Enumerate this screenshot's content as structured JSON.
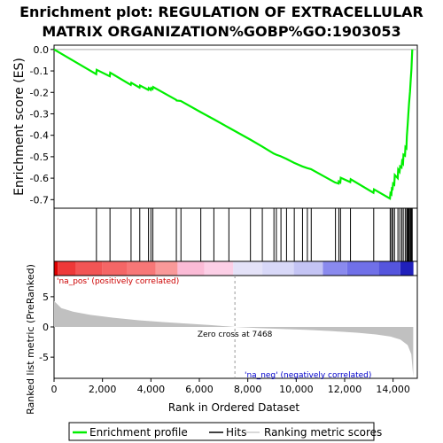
{
  "chart_data": {
    "type": "line",
    "title_line1": "Enrichment plot: REGULATION OF EXTRACELLULAR",
    "title_line2": "MATRIX ORGANIZATION%GOBP%GO:1903053",
    "es_ylabel": "Enrichment score (ES)",
    "es_ylim": [
      -0.74,
      0.02
    ],
    "es_yticks": [
      "0.0",
      "-0.1",
      "-0.2",
      "-0.3",
      "-0.4",
      "-0.5",
      "-0.6",
      "-0.7"
    ],
    "es_ytick_values": [
      0.0,
      -0.1,
      -0.2,
      -0.3,
      -0.4,
      -0.5,
      -0.6,
      -0.7
    ],
    "xlim": [
      0,
      15000
    ],
    "xticks": [
      "0",
      "2,000",
      "4,000",
      "6,000",
      "8,000",
      "10,000",
      "12,000",
      "14,000"
    ],
    "xtick_values": [
      0,
      2000,
      4000,
      6000,
      8000,
      10000,
      12000,
      14000
    ],
    "xlabel": "Rank in Ordered Dataset",
    "metric_ylabel": "Ranked list metric (PreRanked)",
    "metric_ylim": [
      -8.5,
      8.5
    ],
    "metric_yticks": [
      "5",
      "0",
      "-5"
    ],
    "metric_ytick_values": [
      5,
      0,
      -5
    ],
    "zero_cross_label": "Zero cross at 7468",
    "zero_cross": 7468,
    "na_pos_label": "'na_pos' (positively correlated)",
    "na_neg_label": "'na_neg' (negatively correlated)",
    "legend": [
      "Enrichment profile",
      "Hits",
      "Ranking metric scores"
    ],
    "hits": [
      1750,
      2310,
      3180,
      3540,
      3900,
      4000,
      4080,
      5050,
      5240,
      6060,
      6600,
      7220,
      8110,
      8600,
      9080,
      9180,
      9370,
      9600,
      9920,
      10260,
      10460,
      10620,
      11620,
      11760,
      11830,
      12240,
      13200,
      13880,
      13940,
      13990,
      14060,
      14200,
      14280,
      14360,
      14420,
      14500,
      14560,
      14600,
      14630,
      14660,
      14700,
      14730,
      14760,
      14790
    ],
    "es_profile": [
      [
        0,
        0.0
      ],
      [
        1740,
        -0.115
      ],
      [
        1760,
        -0.095
      ],
      [
        2300,
        -0.125
      ],
      [
        2320,
        -0.108
      ],
      [
        3170,
        -0.165
      ],
      [
        3190,
        -0.155
      ],
      [
        3530,
        -0.178
      ],
      [
        3550,
        -0.168
      ],
      [
        3890,
        -0.188
      ],
      [
        3910,
        -0.18
      ],
      [
        3990,
        -0.188
      ],
      [
        4010,
        -0.18
      ],
      [
        4070,
        -0.185
      ],
      [
        4090,
        -0.175
      ],
      [
        5040,
        -0.235
      ],
      [
        5060,
        -0.238
      ],
      [
        5230,
        -0.24
      ],
      [
        6050,
        -0.292
      ],
      [
        6590,
        -0.325
      ],
      [
        7210,
        -0.364
      ],
      [
        8100,
        -0.42
      ],
      [
        8590,
        -0.452
      ],
      [
        9070,
        -0.485
      ],
      [
        9170,
        -0.49
      ],
      [
        9360,
        -0.498
      ],
      [
        9590,
        -0.51
      ],
      [
        9910,
        -0.528
      ],
      [
        10250,
        -0.545
      ],
      [
        10450,
        -0.553
      ],
      [
        10610,
        -0.558
      ],
      [
        11600,
        -0.62
      ],
      [
        11750,
        -0.625
      ],
      [
        11760,
        -0.615
      ],
      [
        11820,
        -0.62
      ],
      [
        11840,
        -0.598
      ],
      [
        12230,
        -0.618
      ],
      [
        12250,
        -0.605
      ],
      [
        13190,
        -0.668
      ],
      [
        13210,
        -0.652
      ],
      [
        13870,
        -0.695
      ],
      [
        13890,
        -0.67
      ],
      [
        13930,
        -0.675
      ],
      [
        13950,
        -0.648
      ],
      [
        13980,
        -0.65
      ],
      [
        14000,
        -0.625
      ],
      [
        14050,
        -0.63
      ],
      [
        14070,
        -0.585
      ],
      [
        14190,
        -0.6
      ],
      [
        14210,
        -0.56
      ],
      [
        14270,
        -0.57
      ],
      [
        14290,
        -0.545
      ],
      [
        14350,
        -0.55
      ],
      [
        14370,
        -0.522
      ],
      [
        14410,
        -0.53
      ],
      [
        14430,
        -0.49
      ],
      [
        14490,
        -0.495
      ],
      [
        14510,
        -0.455
      ],
      [
        14550,
        -0.46
      ],
      [
        14570,
        -0.405
      ],
      [
        14600,
        -0.352
      ],
      [
        14630,
        -0.3
      ],
      [
        14660,
        -0.25
      ],
      [
        14700,
        -0.195
      ],
      [
        14730,
        -0.14
      ],
      [
        14760,
        -0.09
      ],
      [
        14790,
        0.0
      ]
    ],
    "metric_profile": [
      [
        0,
        4.3
      ],
      [
        300,
        3.1
      ],
      [
        800,
        2.5
      ],
      [
        1500,
        2.0
      ],
      [
        2500,
        1.5
      ],
      [
        3500,
        1.1
      ],
      [
        4500,
        0.8
      ],
      [
        5500,
        0.55
      ],
      [
        6500,
        0.3
      ],
      [
        7468,
        0.0
      ],
      [
        8500,
        -0.2
      ],
      [
        9500,
        -0.35
      ],
      [
        10500,
        -0.5
      ],
      [
        11500,
        -0.7
      ],
      [
        12500,
        -0.95
      ],
      [
        13300,
        -1.25
      ],
      [
        13900,
        -1.6
      ],
      [
        14300,
        -2.1
      ],
      [
        14600,
        -3.0
      ],
      [
        14750,
        -4.5
      ],
      [
        14830,
        -8.2
      ]
    ],
    "heat_segments": [
      [
        0,
        150,
        "#dd0000"
      ],
      [
        150,
        900,
        "#ee3838"
      ],
      [
        900,
        2000,
        "#f25555"
      ],
      [
        2000,
        3000,
        "#f46666"
      ],
      [
        3000,
        4200,
        "#f77777"
      ],
      [
        4200,
        5100,
        "#f99999"
      ],
      [
        5100,
        6200,
        "#fbbbd6"
      ],
      [
        6200,
        7400,
        "#fccfe6"
      ],
      [
        7400,
        8600,
        "#e4e2f8"
      ],
      [
        8600,
        9900,
        "#d8d8f8"
      ],
      [
        9900,
        11100,
        "#c4c4f4"
      ],
      [
        11100,
        12100,
        "#8a8aee"
      ],
      [
        12100,
        13400,
        "#7070e8"
      ],
      [
        13400,
        14300,
        "#5555dd"
      ],
      [
        14300,
        14840,
        "#2020bb"
      ]
    ]
  },
  "colors": {
    "es_line": "#00ee00",
    "hits": "#000000",
    "metric_fill": "#c0c0c0",
    "na_pos": "#cc0000",
    "na_neg": "#0000cc",
    "zero_line": "#aaaaaa"
  }
}
